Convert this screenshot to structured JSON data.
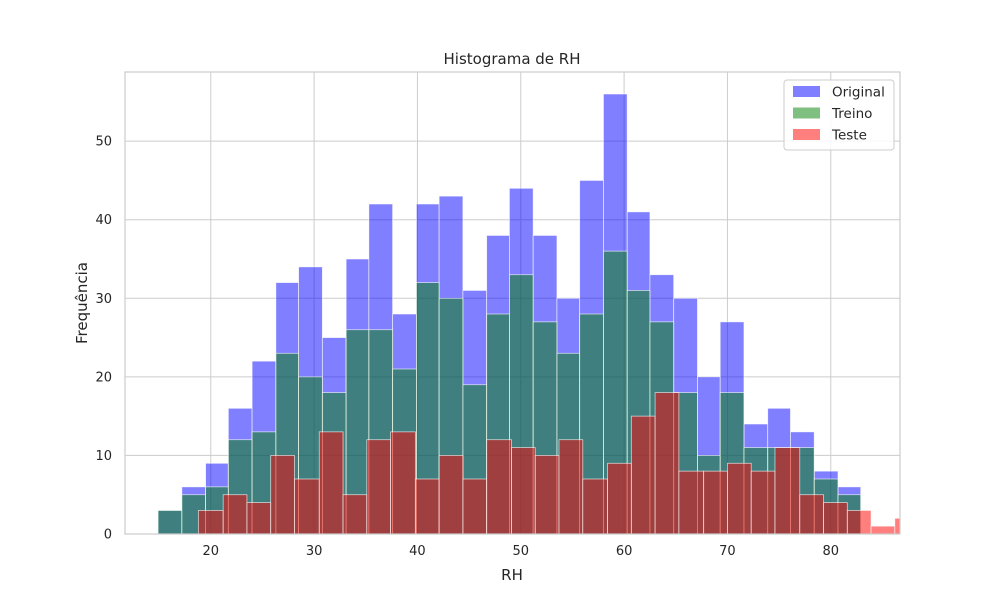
{
  "chart_data": {
    "type": "bar",
    "title": "Histograma de RH",
    "xlabel": "RH",
    "ylabel": "Frequência",
    "xlim": [
      11.7,
      86.7
    ],
    "ylim": [
      0,
      58.8
    ],
    "xticks": [
      20,
      30,
      40,
      50,
      60,
      70,
      80
    ],
    "yticks": [
      0,
      10,
      20,
      30,
      40,
      50
    ],
    "grid": true,
    "legend_position": "top-right",
    "series": [
      {
        "name": "Original",
        "color": "#0000ff",
        "alpha": 0.5,
        "bins": [
          [
            14.9,
            17.2,
            3
          ],
          [
            17.2,
            19.5,
            6
          ],
          [
            19.5,
            21.7,
            9
          ],
          [
            21.7,
            24.0,
            16
          ],
          [
            24.0,
            26.3,
            22
          ],
          [
            26.3,
            28.5,
            32
          ],
          [
            28.5,
            30.8,
            34
          ],
          [
            30.8,
            33.1,
            25
          ],
          [
            33.1,
            35.3,
            35
          ],
          [
            35.3,
            37.6,
            42
          ],
          [
            37.6,
            39.9,
            28
          ],
          [
            39.9,
            42.1,
            42
          ],
          [
            42.1,
            44.4,
            43
          ],
          [
            44.4,
            46.7,
            31
          ],
          [
            46.7,
            48.9,
            38
          ],
          [
            48.9,
            51.2,
            44
          ],
          [
            51.2,
            53.5,
            38
          ],
          [
            53.5,
            55.7,
            30
          ],
          [
            55.7,
            58.0,
            45
          ],
          [
            58.0,
            60.3,
            56
          ],
          [
            60.3,
            62.5,
            41
          ],
          [
            62.5,
            64.8,
            33
          ],
          [
            64.8,
            67.1,
            30
          ],
          [
            67.1,
            69.3,
            20
          ],
          [
            69.3,
            71.6,
            27
          ],
          [
            71.6,
            73.9,
            14
          ],
          [
            73.9,
            76.1,
            16
          ],
          [
            76.1,
            78.4,
            13
          ],
          [
            78.4,
            80.7,
            8
          ],
          [
            80.7,
            82.9,
            6
          ]
        ]
      },
      {
        "name": "Treino",
        "color": "#008000",
        "alpha": 0.5,
        "bins": [
          [
            14.9,
            17.2,
            3
          ],
          [
            17.2,
            19.5,
            5
          ],
          [
            19.5,
            21.7,
            6
          ],
          [
            21.7,
            24.0,
            12
          ],
          [
            24.0,
            26.3,
            13
          ],
          [
            26.3,
            28.5,
            23
          ],
          [
            28.5,
            30.8,
            20
          ],
          [
            30.8,
            33.1,
            18
          ],
          [
            33.1,
            35.3,
            26
          ],
          [
            35.3,
            37.6,
            26
          ],
          [
            37.6,
            39.9,
            21
          ],
          [
            39.9,
            42.1,
            32
          ],
          [
            42.1,
            44.4,
            30
          ],
          [
            44.4,
            46.7,
            19
          ],
          [
            46.7,
            48.9,
            28
          ],
          [
            48.9,
            51.2,
            33
          ],
          [
            51.2,
            53.5,
            27
          ],
          [
            53.5,
            55.7,
            23
          ],
          [
            55.7,
            58.0,
            28
          ],
          [
            58.0,
            60.3,
            36
          ],
          [
            60.3,
            62.5,
            31
          ],
          [
            62.5,
            64.8,
            27
          ],
          [
            64.8,
            67.1,
            18
          ],
          [
            67.1,
            69.3,
            10
          ],
          [
            69.3,
            71.6,
            18
          ],
          [
            71.6,
            73.9,
            11
          ],
          [
            73.9,
            76.1,
            11
          ],
          [
            76.1,
            78.4,
            11
          ],
          [
            78.4,
            80.7,
            7
          ],
          [
            80.7,
            82.9,
            5
          ]
        ]
      },
      {
        "name": "Teste",
        "color": "#ff0000",
        "alpha": 0.5,
        "bins": [
          [
            18.8,
            21.2,
            3
          ],
          [
            21.2,
            23.5,
            5
          ],
          [
            23.5,
            25.8,
            4
          ],
          [
            25.8,
            28.1,
            10
          ],
          [
            28.1,
            30.5,
            7
          ],
          [
            30.5,
            32.8,
            13
          ],
          [
            32.8,
            35.1,
            5
          ],
          [
            35.1,
            37.4,
            12
          ],
          [
            37.4,
            39.8,
            13
          ],
          [
            39.8,
            42.1,
            7
          ],
          [
            42.1,
            44.4,
            10
          ],
          [
            44.4,
            46.7,
            7
          ],
          [
            46.7,
            49.1,
            12
          ],
          [
            49.1,
            51.4,
            11
          ],
          [
            51.4,
            53.7,
            10
          ],
          [
            53.7,
            56.0,
            12
          ],
          [
            56.0,
            58.4,
            7
          ],
          [
            58.4,
            60.7,
            9
          ],
          [
            60.7,
            63.0,
            15
          ],
          [
            63.0,
            65.3,
            18
          ],
          [
            65.3,
            67.7,
            8
          ],
          [
            67.7,
            70.0,
            8
          ],
          [
            70.0,
            72.3,
            9
          ],
          [
            72.3,
            74.6,
            8
          ],
          [
            74.6,
            77.0,
            11
          ],
          [
            77.0,
            79.3,
            5
          ],
          [
            79.3,
            81.6,
            4
          ],
          [
            81.6,
            83.9,
            3
          ],
          [
            83.9,
            86.2,
            1
          ],
          [
            86.2,
            88.5,
            2
          ]
        ]
      }
    ]
  }
}
